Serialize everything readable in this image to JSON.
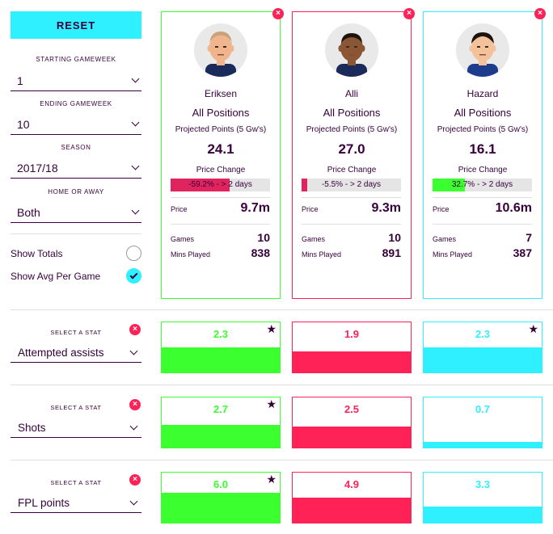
{
  "colors": {
    "green": "#3bff2e",
    "pink": "#ff2257",
    "cyan": "#2ff0ff",
    "navy": "#37003c"
  },
  "sidebar": {
    "reset_label": "RESET",
    "starting_gameweek_label": "STARTING GAMEWEEK",
    "starting_gameweek_value": "1",
    "ending_gameweek_label": "ENDING GAMEWEEK",
    "ending_gameweek_value": "10",
    "season_label": "SEASON",
    "season_value": "2017/18",
    "home_away_label": "HOME OR AWAY",
    "home_away_value": "Both",
    "show_totals_label": "Show Totals",
    "show_totals_checked": false,
    "show_avg_label": "Show Avg Per Game",
    "show_avg_checked": true
  },
  "players": [
    {
      "name": "Eriksen",
      "position": "All Positions",
      "projected_label": "Projected Points (5 Gw's)",
      "projected_points": "24.1",
      "price_change_label": "Price Change",
      "price_change_text": "-59.2% - > 2 days",
      "price_change_fraction": 0.592,
      "price_label": "Price",
      "price": "9.7m",
      "games_label": "Games",
      "games": "10",
      "mins_label": "Mins Played",
      "mins": "838",
      "color": "#3bff2e",
      "bar_color": "#e0245e"
    },
    {
      "name": "Alli",
      "position": "All Positions",
      "projected_label": "Projected Points (5 Gw's)",
      "projected_points": "27.0",
      "price_change_label": "Price Change",
      "price_change_text": "-5.5% - > 2 days",
      "price_change_fraction": 0.055,
      "price_label": "Price",
      "price": "9.3m",
      "games_label": "Games",
      "games": "10",
      "mins_label": "Mins Played",
      "mins": "891",
      "color": "#ff2257",
      "bar_color": "#e0245e"
    },
    {
      "name": "Hazard",
      "position": "All Positions",
      "projected_label": "Projected Points (5 Gw's)",
      "projected_points": "16.1",
      "price_change_label": "Price Change",
      "price_change_text": "32.7% - > 2 days",
      "price_change_fraction": 0.327,
      "price_label": "Price",
      "price": "10.6m",
      "games_label": "Games",
      "games": "7",
      "mins_label": "Mins Played",
      "mins": "387",
      "color": "#2ff0ff",
      "bar_color": "#3bff2e"
    }
  ],
  "stats": [
    {
      "label": "SELECT A STAT",
      "value": "Attempted assists",
      "results": [
        {
          "value": "2.3",
          "fill_fraction": 0.5,
          "starred": true
        },
        {
          "value": "1.9",
          "fill_fraction": 0.42,
          "starred": false
        },
        {
          "value": "2.3",
          "fill_fraction": 0.5,
          "starred": true
        }
      ]
    },
    {
      "label": "SELECT A STAT",
      "value": "Shots",
      "results": [
        {
          "value": "2.7",
          "fill_fraction": 0.45,
          "starred": true
        },
        {
          "value": "2.5",
          "fill_fraction": 0.42,
          "starred": false
        },
        {
          "value": "0.7",
          "fill_fraction": 0.12,
          "starred": false
        }
      ]
    },
    {
      "label": "SELECT A STAT",
      "value": "FPL points",
      "results": [
        {
          "value": "6.0",
          "fill_fraction": 0.6,
          "starred": true
        },
        {
          "value": "4.9",
          "fill_fraction": 0.5,
          "starred": false
        },
        {
          "value": "3.3",
          "fill_fraction": 0.33,
          "starred": false
        }
      ]
    }
  ]
}
